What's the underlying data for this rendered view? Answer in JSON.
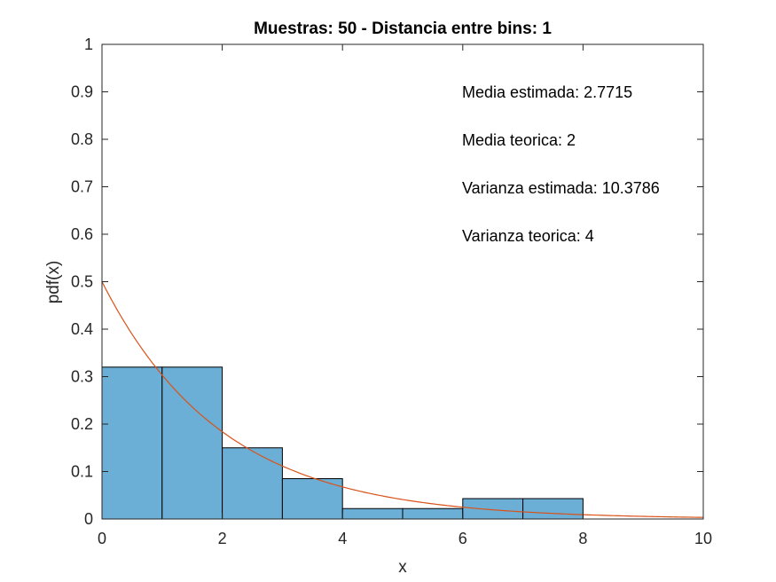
{
  "chart_data": {
    "type": "bar",
    "title": "Muestras: 50 -  Distancia entre bins: 1",
    "xlabel": "x",
    "ylabel": "pdf(x)",
    "xlim": [
      0,
      10
    ],
    "ylim": [
      0,
      1
    ],
    "xticks": [
      "0",
      "2",
      "4",
      "6",
      "8",
      "10"
    ],
    "yticks": [
      "0",
      "0.1",
      "0.2",
      "0.3",
      "0.4",
      "0.5",
      "0.6",
      "0.7",
      "0.8",
      "0.9",
      "1"
    ],
    "grid": false,
    "bins": [
      {
        "x0": 0,
        "x1": 1,
        "value": 0.32
      },
      {
        "x0": 1,
        "x1": 2,
        "value": 0.32
      },
      {
        "x0": 2,
        "x1": 3,
        "value": 0.15
      },
      {
        "x0": 3,
        "x1": 4,
        "value": 0.085
      },
      {
        "x0": 4,
        "x1": 5,
        "value": 0.022
      },
      {
        "x0": 5,
        "x1": 6,
        "value": 0.022
      },
      {
        "x0": 6,
        "x1": 7,
        "value": 0.043
      },
      {
        "x0": 7,
        "x1": 8,
        "value": 0.043
      },
      {
        "x0": 8,
        "x1": 9,
        "value": 0
      },
      {
        "x0": 9,
        "x1": 10,
        "value": 0
      }
    ],
    "curve": {
      "type": "exponential-pdf",
      "mean": 2,
      "color": "#D95319"
    },
    "annotations": [
      "Media estimada: 2.7715",
      "Media teorica: 2",
      "Varianza estimada: 10.3786",
      "Varianza teorica: 4"
    ],
    "colors": {
      "bar_fill": "#6BAED6",
      "bar_edge": "#000000",
      "axes": "#262626"
    }
  }
}
